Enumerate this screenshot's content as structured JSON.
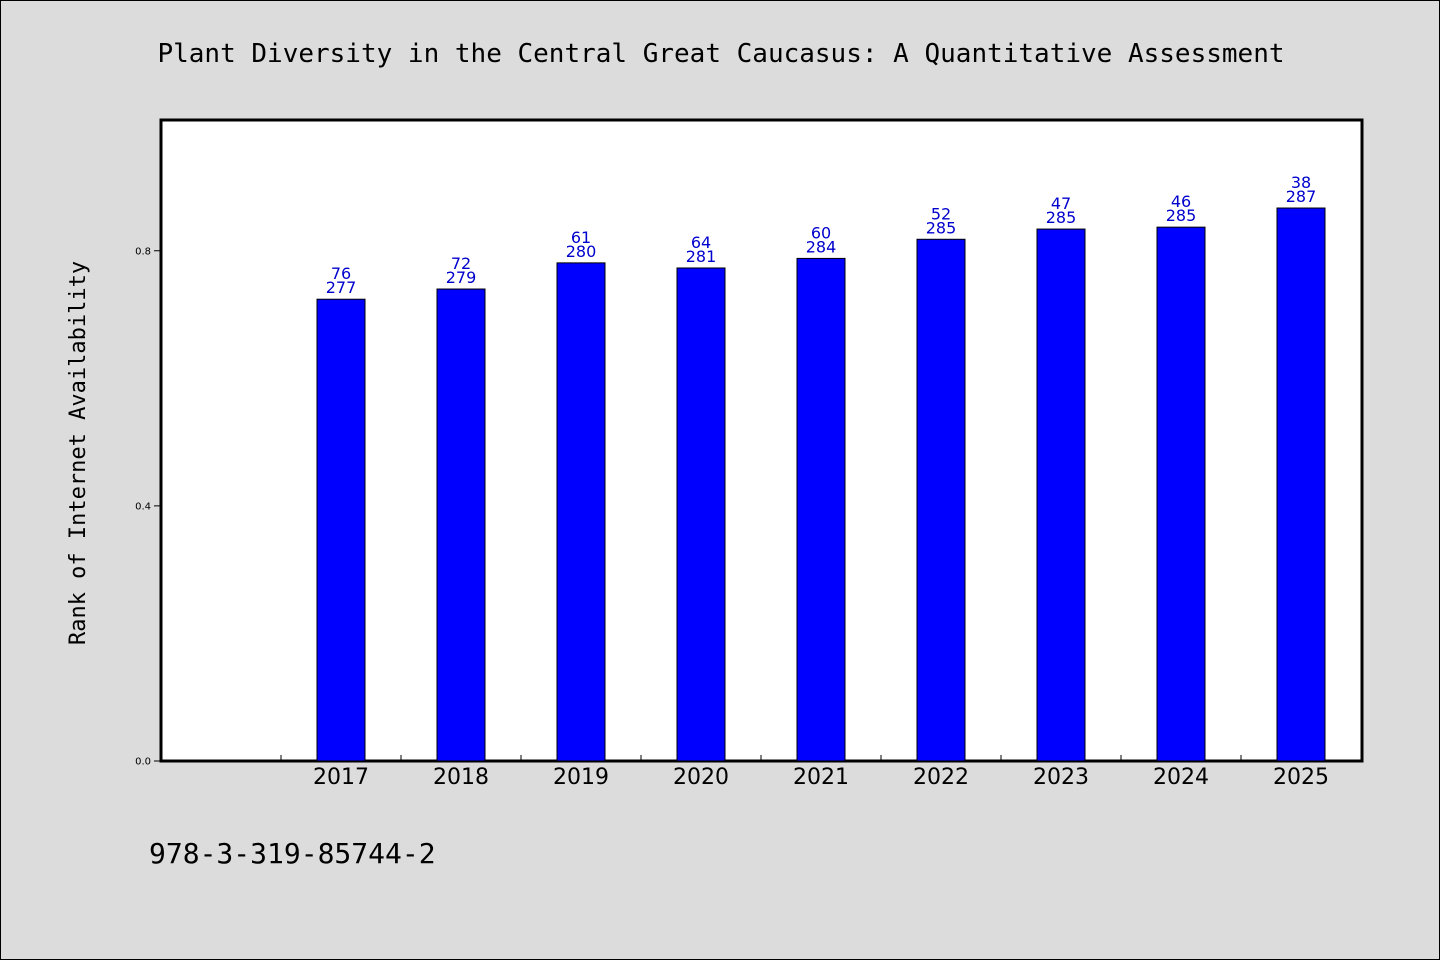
{
  "chart_data": {
    "type": "bar",
    "title": "Plant Diversity in the Central Great Caucasus: A Quantitative Assessment",
    "xlabel": "",
    "ylabel": "Rank of Internet Availability",
    "categories": [
      "2017",
      "2018",
      "2019",
      "2020",
      "2021",
      "2022",
      "2023",
      "2024",
      "2025"
    ],
    "values": [
      0.724,
      0.74,
      0.781,
      0.773,
      0.788,
      0.818,
      0.834,
      0.837,
      0.867
    ],
    "label_top": [
      "76",
      "72",
      "61",
      "64",
      "60",
      "52",
      "47",
      "46",
      "38"
    ],
    "label_bottom": [
      "277",
      "279",
      "280",
      "281",
      "284",
      "285",
      "285",
      "285",
      "287"
    ],
    "ylim": [
      0.0,
      1.005
    ],
    "yticks": [
      "0.0",
      "0.4",
      "0.8"
    ],
    "ytick_values": [
      0.0,
      0.4,
      0.8
    ],
    "grid": false,
    "bar_color": "#0000ff",
    "label_color": "#0000cd"
  },
  "footer": {
    "isbn": "978-3-319-85744-2"
  }
}
